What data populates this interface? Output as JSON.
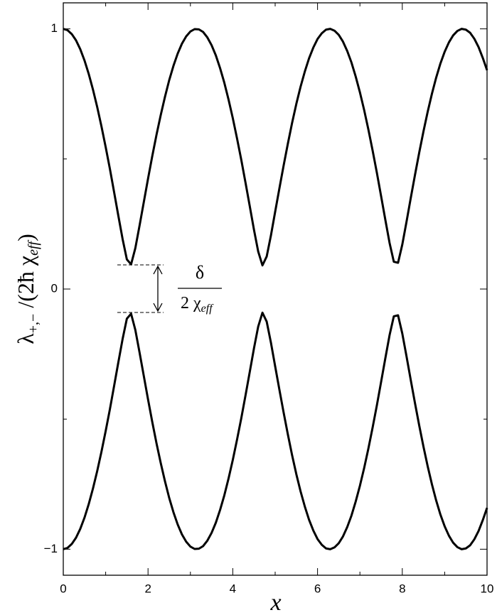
{
  "chart_data": {
    "type": "line",
    "x_label": "x",
    "y_label": {
      "main": "λ",
      "main_sub": "+,−",
      "rest": " /(2ħ χ",
      "rest_sub": "eff",
      "close": ")"
    },
    "annotation": {
      "numerator": "δ",
      "denominator": "2 χ",
      "denominator_sub": "eff"
    },
    "x": [
      0,
      0.1,
      0.2,
      0.3,
      0.4,
      0.5,
      0.6,
      0.7,
      0.8,
      0.9,
      1,
      1.1,
      1.2,
      1.3,
      1.4,
      1.5,
      1.6,
      1.7,
      1.8,
      1.9,
      2,
      2.1,
      2.2,
      2.3,
      2.4,
      2.5,
      2.6,
      2.7,
      2.8,
      2.9,
      3,
      3.1,
      3.2,
      3.3,
      3.4,
      3.5,
      3.6,
      3.7,
      3.8,
      3.9,
      4,
      4.1,
      4.2,
      4.3,
      4.4,
      4.5,
      4.6,
      4.7,
      4.8,
      4.9,
      5,
      5.1,
      5.2,
      5.3,
      5.4,
      5.5,
      5.6,
      5.7,
      5.8,
      5.9,
      6,
      6.1,
      6.2,
      6.3,
      6.4,
      6.5,
      6.6,
      6.7,
      6.8,
      6.9,
      7,
      7.1,
      7.2,
      7.3,
      7.4,
      7.5,
      7.6,
      7.7,
      7.8,
      7.9,
      8,
      8.1,
      8.2,
      8.3,
      8.4,
      8.5,
      8.6,
      8.7,
      8.8,
      8.9,
      9,
      9.1,
      9.2,
      9.3,
      9.4,
      9.5,
      9.6,
      9.7,
      9.8,
      9.9,
      10
    ],
    "series": [
      {
        "color": "#000000",
        "values": [
          1,
          0.995,
          0.98,
          0.956,
          0.922,
          0.879,
          0.827,
          0.767,
          0.7,
          0.626,
          0.546,
          0.462,
          0.372,
          0.281,
          0.192,
          0.114,
          0.095,
          0.157,
          0.244,
          0.334,
          0.424,
          0.511,
          0.593,
          0.669,
          0.739,
          0.803,
          0.858,
          0.905,
          0.943,
          0.971,
          0.99,
          0.999,
          0.998,
          0.988,
          0.967,
          0.937,
          0.898,
          0.849,
          0.793,
          0.728,
          0.657,
          0.579,
          0.497,
          0.409,
          0.319,
          0.228,
          0.144,
          0.091,
          0.125,
          0.206,
          0.297,
          0.387,
          0.475,
          0.559,
          0.639,
          0.712,
          0.778,
          0.836,
          0.887,
          0.928,
          0.961,
          0.983,
          0.997,
          1,
          0.993,
          0.977,
          0.951,
          0.915,
          0.871,
          0.817,
          0.756,
          0.688,
          0.613,
          0.532,
          0.447,
          0.357,
          0.266,
          0.177,
          0.105,
          0.101,
          0.171,
          0.259,
          0.35,
          0.439,
          0.525,
          0.606,
          0.682,
          0.751,
          0.813,
          0.867,
          0.912,
          0.948,
          0.975,
          0.992,
          1,
          0.997,
          0.985,
          0.962,
          0.93,
          0.888,
          0.841
        ]
      },
      {
        "color": "#000000",
        "values": [
          -1,
          -0.995,
          -0.98,
          -0.956,
          -0.922,
          -0.879,
          -0.827,
          -0.767,
          -0.7,
          -0.626,
          -0.546,
          -0.462,
          -0.372,
          -0.281,
          -0.192,
          -0.114,
          -0.095,
          -0.157,
          -0.244,
          -0.334,
          -0.424,
          -0.511,
          -0.593,
          -0.669,
          -0.739,
          -0.803,
          -0.858,
          -0.905,
          -0.943,
          -0.971,
          -0.99,
          -0.999,
          -0.998,
          -0.988,
          -0.967,
          -0.937,
          -0.898,
          -0.849,
          -0.793,
          -0.728,
          -0.657,
          -0.579,
          -0.497,
          -0.409,
          -0.319,
          -0.228,
          -0.144,
          -0.091,
          -0.125,
          -0.206,
          -0.297,
          -0.387,
          -0.475,
          -0.559,
          -0.639,
          -0.712,
          -0.778,
          -0.836,
          -0.887,
          -0.928,
          -0.961,
          -0.983,
          -0.997,
          -1,
          -0.993,
          -0.977,
          -0.951,
          -0.915,
          -0.871,
          -0.817,
          -0.756,
          -0.688,
          -0.613,
          -0.532,
          -0.447,
          -0.357,
          -0.266,
          -0.177,
          -0.105,
          -0.101,
          -0.171,
          -0.259,
          -0.35,
          -0.439,
          -0.525,
          -0.606,
          -0.682,
          -0.751,
          -0.813,
          -0.867,
          -0.912,
          -0.948,
          -0.975,
          -0.992,
          -1,
          -0.997,
          -0.985,
          -0.962,
          -0.93,
          -0.888,
          -0.841
        ]
      }
    ],
    "xlim": [
      0,
      10
    ],
    "xticks": [
      0,
      2,
      4,
      6,
      8,
      10
    ],
    "xminorticks": [
      1,
      3,
      5,
      7,
      9
    ],
    "ylim": [
      -1.1,
      1.1
    ],
    "yticks": [
      {
        "value": -1,
        "label": "−1"
      },
      0,
      1
    ],
    "yminorticks": [
      -0.5,
      0.5
    ],
    "grid": false
  }
}
